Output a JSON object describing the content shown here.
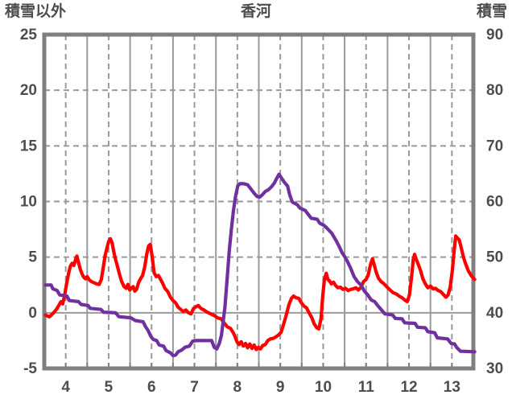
{
  "chart_data": {
    "type": "line",
    "title": "香河",
    "left_axis_label": "積雪以外",
    "right_axis_label": "積雪",
    "x_range": [
      3.5,
      13.5
    ],
    "x_ticks": [
      4,
      5,
      6,
      7,
      8,
      9,
      10,
      11,
      12,
      13
    ],
    "x_minor_tick_step": 0.5,
    "left_range": [
      -5,
      25
    ],
    "left_ticks": [
      25,
      20,
      15,
      10,
      5,
      0,
      -5
    ],
    "right_range": [
      30,
      90
    ],
    "right_ticks": [
      90,
      80,
      70,
      60,
      50,
      40,
      30
    ],
    "grid": {
      "dashed_vertical_at": [
        4,
        5,
        6,
        7,
        8,
        9,
        10,
        11,
        12,
        13
      ],
      "solid_vertical_at": [
        4.5,
        5.5,
        6.5,
        7.5,
        8.5,
        9.5,
        10.5,
        11.5,
        12.5
      ],
      "dashed_horizontal_at_left_values": [
        5,
        10,
        15,
        20
      ],
      "solid_horizontal_at_left_values": [
        0
      ]
    },
    "colors": {
      "series_non_snow": "#ff0000",
      "series_snow": "#7030a0",
      "grid": "#9a9a9a",
      "frame": "#7f7f7f",
      "text": "#4d4d4d"
    },
    "series": [
      {
        "name": "積雪以外",
        "axis": "left",
        "color": "#ff0000",
        "points": [
          [
            3.53,
            -0.2
          ],
          [
            3.58,
            -0.3
          ],
          [
            3.62,
            -0.35
          ],
          [
            3.68,
            -0.15
          ],
          [
            3.74,
            0.1
          ],
          [
            3.8,
            0.4
          ],
          [
            3.85,
            0.75
          ],
          [
            3.89,
            1.0
          ],
          [
            3.93,
            0.8
          ],
          [
            3.97,
            1.5
          ],
          [
            4.02,
            2.6
          ],
          [
            4.07,
            3.6
          ],
          [
            4.11,
            4.2
          ],
          [
            4.15,
            4.45
          ],
          [
            4.19,
            4.25
          ],
          [
            4.23,
            4.8
          ],
          [
            4.26,
            5.1
          ],
          [
            4.3,
            4.5
          ],
          [
            4.34,
            3.9
          ],
          [
            4.38,
            3.5
          ],
          [
            4.42,
            3.2
          ],
          [
            4.46,
            3.05
          ],
          [
            4.5,
            3.25
          ],
          [
            4.55,
            2.95
          ],
          [
            4.6,
            2.8
          ],
          [
            4.66,
            2.7
          ],
          [
            4.72,
            2.6
          ],
          [
            4.78,
            2.55
          ],
          [
            4.83,
            3.0
          ],
          [
            4.88,
            4.2
          ],
          [
            4.92,
            5.2
          ],
          [
            4.96,
            5.8
          ],
          [
            5.0,
            6.4
          ],
          [
            5.04,
            6.65
          ],
          [
            5.08,
            6.3
          ],
          [
            5.12,
            5.5
          ],
          [
            5.16,
            4.8
          ],
          [
            5.2,
            4.25
          ],
          [
            5.25,
            3.5
          ],
          [
            5.3,
            2.85
          ],
          [
            5.36,
            2.35
          ],
          [
            5.41,
            2.2
          ],
          [
            5.45,
            2.55
          ],
          [
            5.49,
            2.05
          ],
          [
            5.53,
            2.2
          ],
          [
            5.57,
            2.35
          ],
          [
            5.61,
            1.95
          ],
          [
            5.65,
            2.1
          ],
          [
            5.7,
            2.75
          ],
          [
            5.75,
            3.1
          ],
          [
            5.79,
            3.35
          ],
          [
            5.84,
            4.1
          ],
          [
            5.89,
            5.3
          ],
          [
            5.93,
            6.0
          ],
          [
            5.97,
            6.15
          ],
          [
            6.02,
            4.9
          ],
          [
            6.06,
            3.6
          ],
          [
            6.11,
            3.25
          ],
          [
            6.16,
            3.35
          ],
          [
            6.21,
            3.0
          ],
          [
            6.26,
            2.65
          ],
          [
            6.31,
            2.2
          ],
          [
            6.38,
            1.9
          ],
          [
            6.44,
            1.4
          ],
          [
            6.5,
            1.1
          ],
          [
            6.56,
            0.9
          ],
          [
            6.62,
            0.5
          ],
          [
            6.68,
            0.3
          ],
          [
            6.74,
            0.1
          ],
          [
            6.8,
            0.25
          ],
          [
            6.86,
            0.0
          ],
          [
            6.92,
            -0.1
          ],
          [
            6.98,
            0.4
          ],
          [
            7.04,
            0.55
          ],
          [
            7.09,
            0.65
          ],
          [
            7.15,
            0.4
          ],
          [
            7.22,
            0.25
          ],
          [
            7.3,
            0.05
          ],
          [
            7.38,
            -0.1
          ],
          [
            7.46,
            -0.25
          ],
          [
            7.54,
            -0.45
          ],
          [
            7.62,
            -0.55
          ],
          [
            7.7,
            -0.95
          ],
          [
            7.76,
            -1.25
          ],
          [
            7.84,
            -1.4
          ],
          [
            7.92,
            -1.9
          ],
          [
            7.99,
            -2.6
          ],
          [
            8.04,
            -2.85
          ],
          [
            8.09,
            -2.6
          ],
          [
            8.14,
            -3.0
          ],
          [
            8.19,
            -2.75
          ],
          [
            8.24,
            -3.15
          ],
          [
            8.29,
            -2.8
          ],
          [
            8.34,
            -3.2
          ],
          [
            8.39,
            -2.9
          ],
          [
            8.44,
            -3.3
          ],
          [
            8.49,
            -3.1
          ],
          [
            8.54,
            -3.25
          ],
          [
            8.59,
            -2.95
          ],
          [
            8.65,
            -2.85
          ],
          [
            8.71,
            -2.5
          ],
          [
            8.77,
            -2.35
          ],
          [
            8.84,
            -2.3
          ],
          [
            8.9,
            -2.15
          ],
          [
            8.96,
            -2.0
          ],
          [
            9.02,
            -1.75
          ],
          [
            9.08,
            -1.0
          ],
          [
            9.14,
            -0.2
          ],
          [
            9.2,
            0.7
          ],
          [
            9.26,
            1.3
          ],
          [
            9.31,
            1.5
          ],
          [
            9.37,
            1.35
          ],
          [
            9.43,
            1.3
          ],
          [
            9.49,
            0.9
          ],
          [
            9.55,
            0.6
          ],
          [
            9.61,
            0.45
          ],
          [
            9.67,
            0.0
          ],
          [
            9.73,
            -0.4
          ],
          [
            9.79,
            -1.0
          ],
          [
            9.85,
            -1.35
          ],
          [
            9.9,
            -1.45
          ],
          [
            9.95,
            -0.5
          ],
          [
            9.99,
            1.5
          ],
          [
            10.03,
            3.0
          ],
          [
            10.07,
            3.55
          ],
          [
            10.11,
            3.0
          ],
          [
            10.15,
            2.85
          ],
          [
            10.19,
            2.6
          ],
          [
            10.24,
            2.75
          ],
          [
            10.29,
            2.45
          ],
          [
            10.34,
            2.25
          ],
          [
            10.4,
            2.3
          ],
          [
            10.46,
            2.1
          ],
          [
            10.52,
            2.2
          ],
          [
            10.58,
            2.0
          ],
          [
            10.64,
            2.1
          ],
          [
            10.7,
            2.15
          ],
          [
            10.76,
            2.25
          ],
          [
            10.82,
            2.05
          ],
          [
            10.88,
            2.3
          ],
          [
            10.94,
            2.8
          ],
          [
            11.0,
            3.0
          ],
          [
            11.05,
            3.4
          ],
          [
            11.1,
            4.3
          ],
          [
            11.15,
            4.85
          ],
          [
            11.19,
            4.3
          ],
          [
            11.24,
            3.6
          ],
          [
            11.29,
            3.1
          ],
          [
            11.35,
            2.8
          ],
          [
            11.42,
            2.6
          ],
          [
            11.49,
            2.3
          ],
          [
            11.56,
            2.05
          ],
          [
            11.63,
            1.8
          ],
          [
            11.7,
            1.7
          ],
          [
            11.77,
            1.5
          ],
          [
            11.84,
            1.35
          ],
          [
            11.9,
            1.15
          ],
          [
            11.96,
            1.0
          ],
          [
            12.01,
            1.6
          ],
          [
            12.06,
            3.2
          ],
          [
            12.1,
            4.8
          ],
          [
            12.13,
            5.25
          ],
          [
            12.17,
            4.8
          ],
          [
            12.22,
            4.3
          ],
          [
            12.27,
            3.8
          ],
          [
            12.32,
            3.1
          ],
          [
            12.38,
            2.6
          ],
          [
            12.44,
            2.25
          ],
          [
            12.5,
            2.4
          ],
          [
            12.56,
            2.15
          ],
          [
            12.62,
            2.2
          ],
          [
            12.68,
            2.0
          ],
          [
            12.74,
            1.9
          ],
          [
            12.8,
            1.65
          ],
          [
            12.86,
            1.4
          ],
          [
            12.91,
            1.6
          ],
          [
            12.96,
            2.3
          ],
          [
            13.01,
            3.8
          ],
          [
            13.05,
            5.5
          ],
          [
            13.09,
            6.9
          ],
          [
            13.13,
            6.7
          ],
          [
            13.17,
            6.55
          ],
          [
            13.22,
            5.8
          ],
          [
            13.27,
            5.0
          ],
          [
            13.32,
            4.4
          ],
          [
            13.38,
            3.8
          ],
          [
            13.44,
            3.4
          ],
          [
            13.5,
            3.1
          ],
          [
            13.53,
            3.0
          ]
        ]
      },
      {
        "name": "積雪",
        "axis": "right",
        "color": "#7030a0",
        "points": [
          [
            3.53,
            45
          ],
          [
            3.66,
            45
          ],
          [
            3.7,
            44.3
          ],
          [
            3.8,
            44
          ],
          [
            3.86,
            43.2
          ],
          [
            4.03,
            43
          ],
          [
            4.08,
            42.2
          ],
          [
            4.3,
            42
          ],
          [
            4.36,
            41.5
          ],
          [
            4.52,
            41.3
          ],
          [
            4.57,
            40.8
          ],
          [
            4.82,
            40.6
          ],
          [
            4.88,
            40.1
          ],
          [
            5.16,
            40
          ],
          [
            5.24,
            39.3
          ],
          [
            5.52,
            39.1
          ],
          [
            5.62,
            38.6
          ],
          [
            5.8,
            38.4
          ],
          [
            5.86,
            37.5
          ],
          [
            5.92,
            36.8
          ],
          [
            5.98,
            35.8
          ],
          [
            6.04,
            35.2
          ],
          [
            6.12,
            35
          ],
          [
            6.18,
            34.2
          ],
          [
            6.28,
            34
          ],
          [
            6.34,
            33.2
          ],
          [
            6.44,
            32.8
          ],
          [
            6.5,
            32.3
          ],
          [
            6.56,
            32.4
          ],
          [
            6.62,
            33
          ],
          [
            6.7,
            33.3
          ],
          [
            6.78,
            33.8
          ],
          [
            6.88,
            34
          ],
          [
            6.96,
            34.9
          ],
          [
            7.04,
            35
          ],
          [
            7.4,
            35
          ],
          [
            7.46,
            33.8
          ],
          [
            7.52,
            33.5
          ],
          [
            7.58,
            34.5
          ],
          [
            7.63,
            36
          ],
          [
            7.67,
            38.5
          ],
          [
            7.71,
            41
          ],
          [
            7.76,
            46
          ],
          [
            7.81,
            51
          ],
          [
            7.86,
            55
          ],
          [
            7.91,
            58.5
          ],
          [
            7.96,
            61
          ],
          [
            8.01,
            62.8
          ],
          [
            8.06,
            63.2
          ],
          [
            8.15,
            63.2
          ],
          [
            8.24,
            63
          ],
          [
            8.31,
            62.3
          ],
          [
            8.4,
            61.4
          ],
          [
            8.46,
            60.9
          ],
          [
            8.52,
            60.8
          ],
          [
            8.58,
            61.2
          ],
          [
            8.65,
            61.8
          ],
          [
            8.72,
            62.1
          ],
          [
            8.79,
            62.6
          ],
          [
            8.86,
            63.3
          ],
          [
            8.92,
            64.2
          ],
          [
            8.97,
            64.9
          ],
          [
            9.03,
            64.2
          ],
          [
            9.1,
            63.4
          ],
          [
            9.17,
            62.8
          ],
          [
            9.22,
            61.2
          ],
          [
            9.28,
            59.9
          ],
          [
            9.4,
            59.4
          ],
          [
            9.46,
            58.8
          ],
          [
            9.58,
            58.4
          ],
          [
            9.64,
            57.8
          ],
          [
            9.72,
            57
          ],
          [
            9.86,
            56.8
          ],
          [
            9.92,
            56.1
          ],
          [
            10.02,
            55.7
          ],
          [
            10.09,
            55.2
          ],
          [
            10.2,
            54.3
          ],
          [
            10.3,
            53
          ],
          [
            10.38,
            51.8
          ],
          [
            10.44,
            50.8
          ],
          [
            10.5,
            50.1
          ],
          [
            10.56,
            49.3
          ],
          [
            10.64,
            48
          ],
          [
            10.72,
            46.5
          ],
          [
            10.8,
            45.6
          ],
          [
            10.88,
            45
          ],
          [
            10.96,
            43.9
          ],
          [
            11.04,
            43.2
          ],
          [
            11.12,
            42.3
          ],
          [
            11.2,
            42
          ],
          [
            11.28,
            41.2
          ],
          [
            11.36,
            40.5
          ],
          [
            11.44,
            39.8
          ],
          [
            11.62,
            39.6
          ],
          [
            11.68,
            39
          ],
          [
            11.84,
            38.9
          ],
          [
            11.9,
            38.2
          ],
          [
            12.14,
            38.1
          ],
          [
            12.2,
            37.4
          ],
          [
            12.38,
            37.3
          ],
          [
            12.44,
            36.6
          ],
          [
            12.6,
            36.4
          ],
          [
            12.66,
            35.5
          ],
          [
            12.9,
            35.3
          ],
          [
            12.98,
            34.5
          ],
          [
            13.06,
            34.4
          ],
          [
            13.12,
            33.7
          ],
          [
            13.2,
            33.1
          ],
          [
            13.53,
            33
          ]
        ]
      }
    ]
  }
}
